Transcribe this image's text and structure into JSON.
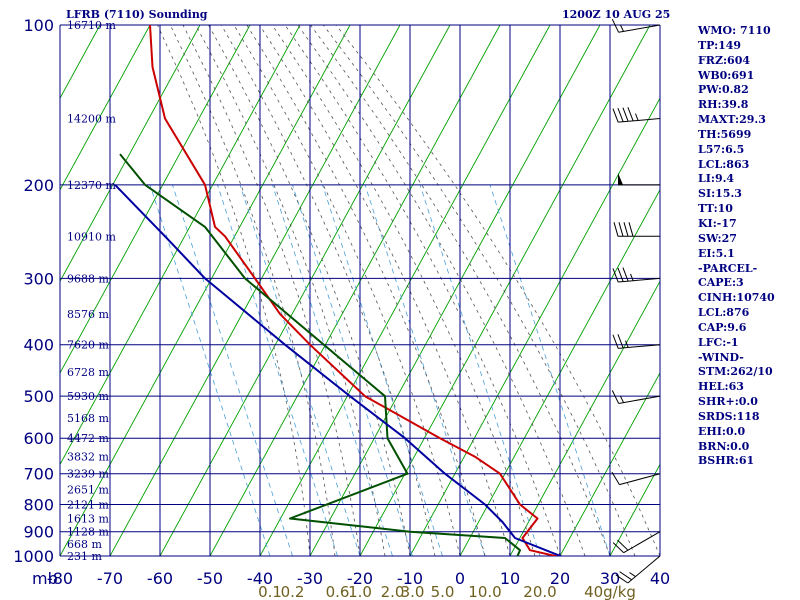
{
  "header": {
    "title": "LFRB (7110) Sounding",
    "time": "1200Z 10 AUG 25"
  },
  "indices": [
    "WMO: 7110",
    "TP:149",
    "FRZ:604",
    "WB0:691",
    "PW:0.82",
    "RH:39.8",
    "MAXT:29.3",
    "TH:5699",
    "L57:6.5",
    "LCL:863",
    "LI:9.4",
    "SI:15.3",
    "TT:10",
    "KI:-17",
    "SW:27",
    "EI:5.1",
    "-PARCEL-",
    "CAPE:3",
    "CINH:10740",
    "LCL:876",
    "CAP:9.6",
    "LFC:-1",
    "-WIND-",
    "STM:262/10",
    "HEL:63",
    "SHR+:0.0",
    "SRDS:118",
    "EHI:0.0",
    "BRN:0.0",
    "BSHR:61"
  ],
  "colors": {
    "grid": "#000080",
    "skew_isotherm": "#00a000",
    "temperature": "#cc0000",
    "dewpoint": "#005000",
    "parcel": "#0000a0",
    "moist_adiabat": "#555555",
    "mixing_ratio": "#4aa0d8",
    "text": "#000080",
    "mixing_label": "#706020"
  },
  "chart_data": {
    "type": "line",
    "title": "LFRB (7110) Sounding",
    "xlabel": "",
    "ylabel": "mb",
    "xlim": [
      -80,
      40
    ],
    "ylim": [
      1000,
      100
    ],
    "y_scale": "log",
    "x_ticks": [
      -80,
      -70,
      -60,
      -50,
      -40,
      -30,
      -20,
      -10,
      0,
      10,
      20,
      30,
      40
    ],
    "y_ticks": [
      100,
      200,
      300,
      400,
      500,
      600,
      700,
      800,
      900,
      1000
    ],
    "mixing_ratio_labels": [
      {
        "text": "0.1",
        "x": -38
      },
      {
        "text": "0.2",
        "x": -33.5
      },
      {
        "text": "0.6",
        "x": -24.5
      },
      {
        "text": "1.0",
        "x": -20
      },
      {
        "text": "2.0",
        "x": -13.5
      },
      {
        "text": "3.0",
        "x": -9.5
      },
      {
        "text": "5.0",
        "x": -3.5
      },
      {
        "text": "10.0",
        "x": 5
      },
      {
        "text": "20.0",
        "x": 16
      },
      {
        "text": "40g/kg",
        "x": 30
      }
    ],
    "height_labels": [
      {
        "p": 100,
        "text": "16710 m"
      },
      {
        "p": 150,
        "text": "14200 m"
      },
      {
        "p": 200,
        "text": "12370 m"
      },
      {
        "p": 250,
        "text": "10910 m"
      },
      {
        "p": 300,
        "text": "9688 m"
      },
      {
        "p": 350,
        "text": "8576 m"
      },
      {
        "p": 400,
        "text": "7620 m"
      },
      {
        "p": 450,
        "text": "6728 m"
      },
      {
        "p": 500,
        "text": "5930 m"
      },
      {
        "p": 550,
        "text": "5168 m"
      },
      {
        "p": 600,
        "text": "4472 m"
      },
      {
        "p": 650,
        "text": "3832 m"
      },
      {
        "p": 700,
        "text": "3239 m"
      },
      {
        "p": 750,
        "text": "2651 m"
      },
      {
        "p": 800,
        "text": "2121 m"
      },
      {
        "p": 850,
        "text": "1613 m"
      },
      {
        "p": 900,
        "text": "1128 m"
      },
      {
        "p": 950,
        "text": "668 m"
      },
      {
        "p": 1000,
        "text": "231 m"
      }
    ],
    "series": [
      {
        "name": "",
        "key": "temperature",
        "points": [
          [
            1012,
            21.5
          ],
          [
            975,
            14
          ],
          [
            925,
            12.5
          ],
          [
            850,
            15.5
          ],
          [
            800,
            12
          ],
          [
            700,
            8
          ],
          [
            650,
            3
          ],
          [
            600,
            -4
          ],
          [
            500,
            -19
          ],
          [
            400,
            -30
          ],
          [
            350,
            -36
          ],
          [
            300,
            -41
          ],
          [
            250,
            -47
          ],
          [
            240,
            -49
          ],
          [
            200,
            -51
          ],
          [
            150,
            -59
          ],
          [
            120,
            -61.5
          ],
          [
            100,
            -62
          ]
        ]
      },
      {
        "name": "",
        "key": "dewpoint",
        "points": [
          [
            1012,
            12
          ],
          [
            1000,
            11.5
          ],
          [
            975,
            12
          ],
          [
            925,
            9
          ],
          [
            900,
            -10
          ],
          [
            850,
            -34
          ],
          [
            700,
            -10.5
          ],
          [
            600,
            -14.5
          ],
          [
            500,
            -15
          ],
          [
            300,
            -43
          ],
          [
            240,
            -51
          ],
          [
            200,
            -63
          ],
          [
            175,
            -68
          ]
        ]
      },
      {
        "name": "",
        "key": "parcel",
        "points": [
          [
            1012,
            21.5
          ],
          [
            925,
            11
          ],
          [
            863,
            8.5
          ],
          [
            800,
            5
          ],
          [
            700,
            -3
          ],
          [
            600,
            -11
          ],
          [
            500,
            -22
          ],
          [
            400,
            -35
          ],
          [
            300,
            -51
          ],
          [
            250,
            -59
          ],
          [
            200,
            -69
          ]
        ]
      }
    ],
    "wind_barbs": [
      {
        "p": 100,
        "dir": 260,
        "speed": 15
      },
      {
        "p": 150,
        "dir": 265,
        "speed": 45
      },
      {
        "p": 200,
        "dir": 270,
        "speed": 50
      },
      {
        "p": 250,
        "dir": 270,
        "speed": 40
      },
      {
        "p": 300,
        "dir": 265,
        "speed": 35
      },
      {
        "p": 400,
        "dir": 265,
        "speed": 25
      },
      {
        "p": 500,
        "dir": 260,
        "speed": 15
      },
      {
        "p": 700,
        "dir": 255,
        "speed": 10
      },
      {
        "p": 900,
        "dir": 240,
        "speed": 20
      },
      {
        "p": 1000,
        "dir": 230,
        "speed": 25
      }
    ]
  }
}
